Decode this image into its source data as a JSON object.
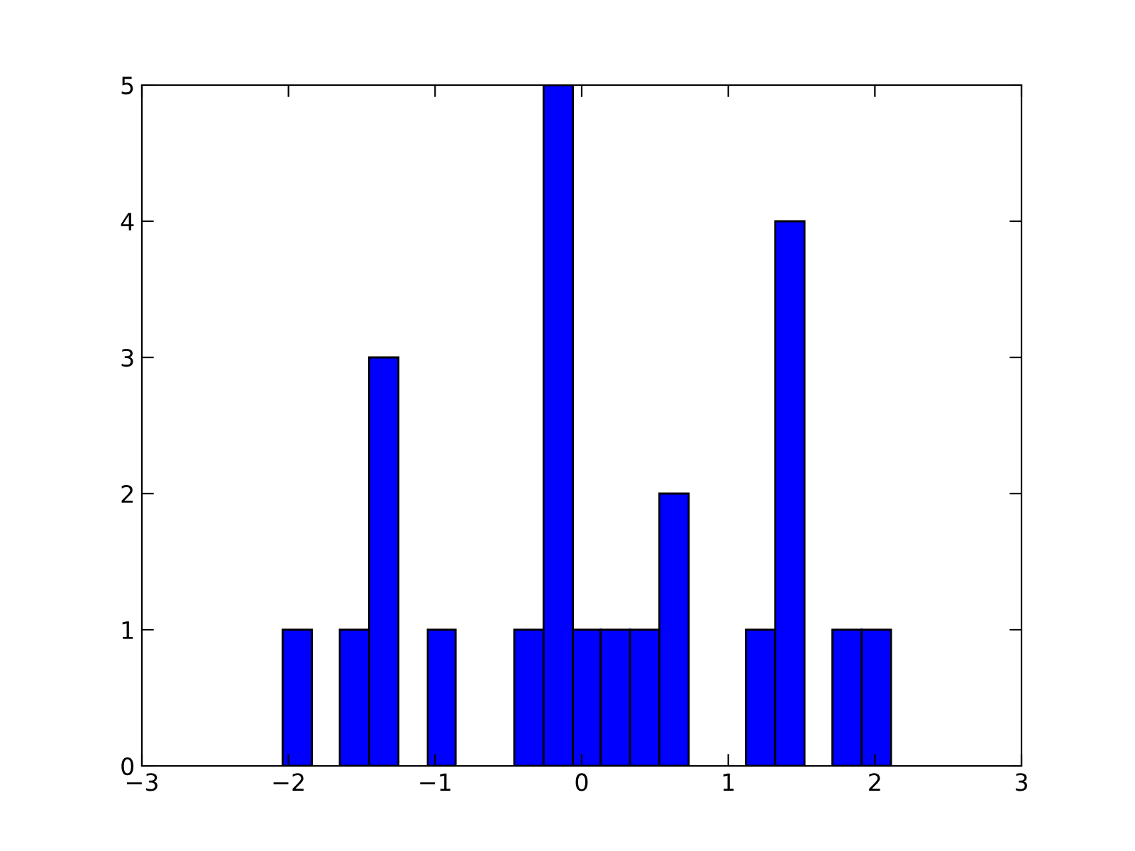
{
  "chart_data": {
    "type": "histogram",
    "color": "#0000ff",
    "bins": [
      -2.04,
      -1.84,
      -1.65,
      -1.45,
      -1.25,
      -1.05,
      -0.86,
      -0.46,
      -0.26,
      -0.06,
      0.13,
      0.33,
      0.53,
      0.73,
      1.12,
      1.32,
      1.52,
      1.71,
      1.91,
      2.11
    ],
    "values": [
      1,
      0,
      1,
      3,
      0,
      1,
      0,
      1,
      5,
      1,
      1,
      1,
      2,
      0,
      1,
      4,
      0,
      1,
      1
    ],
    "xlim": [
      -3,
      3
    ],
    "xticks": [
      {
        "value": -3,
        "label": "−3"
      },
      {
        "value": -2,
        "label": "−2"
      },
      {
        "value": -1,
        "label": "−1"
      },
      0,
      1,
      2,
      3
    ],
    "ylim": [
      0,
      5
    ],
    "yticks": [
      0,
      1,
      2,
      3,
      4,
      5
    ],
    "grid": false,
    "legend": false
  }
}
